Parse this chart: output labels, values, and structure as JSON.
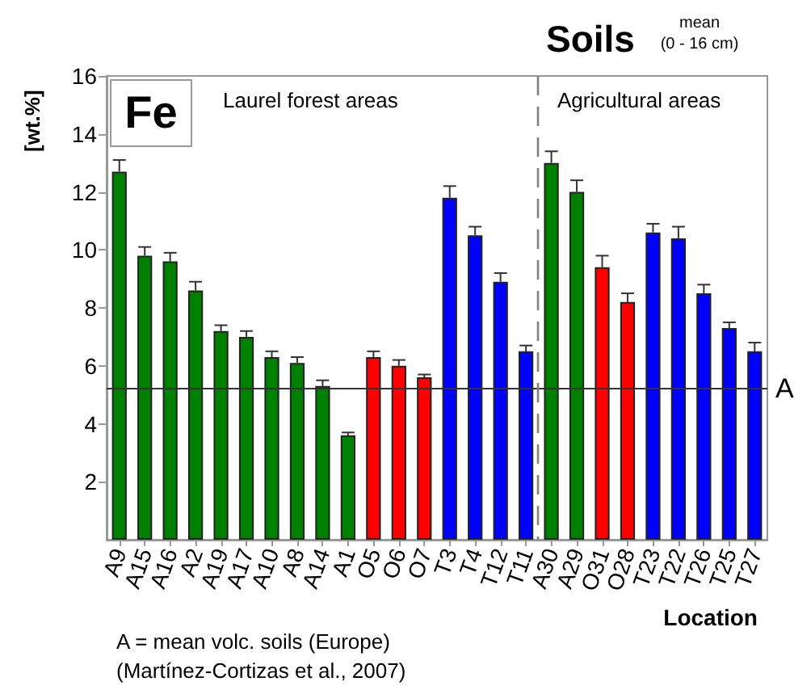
{
  "chart_data": {
    "type": "bar",
    "title": "Soils",
    "subtitle": "mean\n(0 - 16 cm)",
    "xlabel": "Location",
    "ylabel": "[wt.%]",
    "annotations": [
      "Fe",
      "Laurel forest areas",
      "Agricultural areas",
      "A = mean volc. soils (Europe)",
      "(Martínez-Cortizas et al., 2007)"
    ],
    "categories": [
      "A9",
      "A15",
      "A16",
      "A2",
      "A19",
      "A17",
      "A10",
      "A8",
      "A14",
      "A1",
      "O5",
      "O6",
      "O7",
      "T3",
      "T4",
      "T12",
      "T11",
      "A30",
      "A29",
      "O31",
      "O28",
      "T23",
      "T22",
      "T26",
      "T25",
      "T27"
    ],
    "values": [
      12.7,
      9.8,
      9.6,
      8.6,
      7.2,
      7.0,
      6.3,
      6.1,
      5.3,
      3.6,
      6.3,
      6.0,
      5.6,
      11.8,
      10.5,
      8.9,
      6.5,
      13.0,
      12.0,
      9.4,
      8.2,
      10.6,
      10.4,
      8.5,
      7.3,
      6.5
    ],
    "colors": [
      "#008000",
      "#008000",
      "#008000",
      "#008000",
      "#008000",
      "#008000",
      "#008000",
      "#008000",
      "#008000",
      "#008000",
      "#ff0000",
      "#ff0000",
      "#ff0000",
      "#0000ff",
      "#0000ff",
      "#0000ff",
      "#0000ff",
      "#008000",
      "#008000",
      "#ff0000",
      "#ff0000",
      "#0000ff",
      "#0000ff",
      "#0000ff",
      "#0000ff",
      "#0000ff"
    ],
    "errors": [
      [
        12.7,
        13.1
      ],
      [
        9.8,
        10.1
      ],
      [
        9.6,
        9.9
      ],
      [
        8.6,
        8.9
      ],
      [
        7.2,
        7.4
      ],
      [
        7.0,
        7.2
      ],
      [
        6.3,
        6.5
      ],
      [
        6.1,
        6.3
      ],
      [
        5.3,
        5.5
      ],
      [
        3.6,
        3.7
      ],
      [
        6.3,
        6.5
      ],
      [
        6.0,
        6.2
      ],
      [
        5.6,
        5.7
      ],
      [
        11.8,
        12.2
      ],
      [
        10.5,
        10.8
      ],
      [
        8.9,
        9.2
      ],
      [
        6.5,
        6.7
      ],
      [
        13.0,
        13.4
      ],
      [
        12.0,
        12.4
      ],
      [
        9.4,
        9.8
      ],
      [
        8.2,
        8.5
      ],
      [
        10.6,
        10.9
      ],
      [
        10.4,
        10.8
      ],
      [
        8.5,
        8.8
      ],
      [
        7.3,
        7.5
      ],
      [
        6.5,
        6.8
      ]
    ],
    "ylim": [
      0,
      16
    ],
    "yticks": [
      2,
      4,
      6,
      8,
      10,
      12,
      14,
      16
    ],
    "ref_lines": [
      {
        "axis": "y",
        "value": 5.2,
        "label": "A",
        "color": "#333333",
        "line_style": "solid"
      }
    ]
  }
}
